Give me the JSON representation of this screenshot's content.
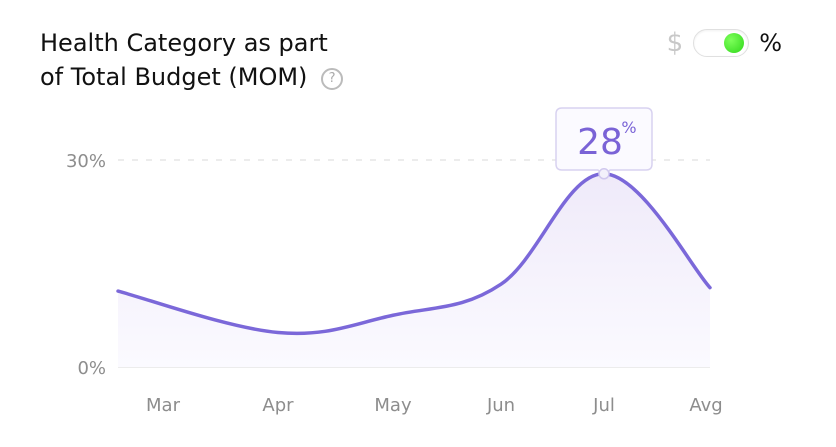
{
  "header": {
    "title_line1": "Health Category as part",
    "title_line2": "of Total Budget (MOM)",
    "help_icon": "question-circle-icon"
  },
  "toggle": {
    "left_label": "$",
    "right_label": "%",
    "state": "on",
    "knob_color": "#3ee31f"
  },
  "chart_data": {
    "type": "area",
    "categories": [
      "Mar",
      "Apr",
      "May",
      "Jun",
      "Jul",
      "Avg"
    ],
    "series": [
      {
        "values": [
          11,
          5,
          7.5,
          12,
          28,
          11.5
        ]
      }
    ],
    "ylim": [
      0,
      35
    ],
    "y_ticks": [
      "0%",
      "30%"
    ],
    "y_tick_values": [
      0,
      30
    ],
    "line_color": "#7b68d9",
    "fill_color": "#f4f2fb",
    "tooltip": {
      "category": "Jul",
      "value": "28",
      "unit": "%"
    }
  }
}
